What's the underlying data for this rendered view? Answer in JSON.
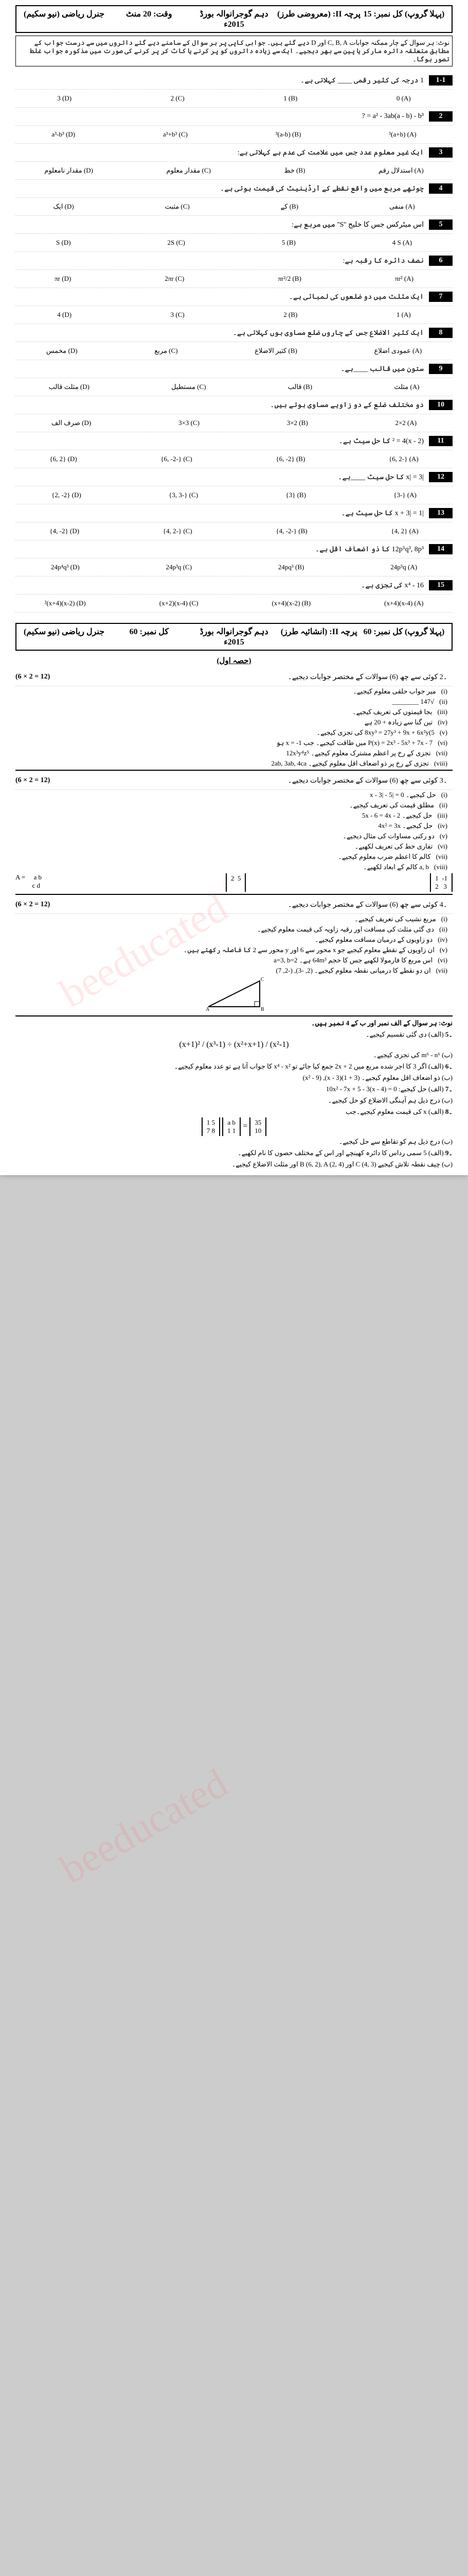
{
  "paper1": {
    "header": {
      "subject": "جنرل ریاضی (نیو سکیم)",
      "time": "وقت: 20 منٹ",
      "board": "دہم گوجرانوالہ بورڈ 2015ء",
      "paper": "پرچہ II: (معروضی طرز)",
      "group": "(پہلا گروپ) کل نمبر: 15"
    },
    "note": "نوٹ: ہر سوال کے چار ممکنہ جوابات C, B, A اور D دیے گئے ہیں۔ جوابی کاپی پر ہر سوال کے سامنے دیے گئے دائروں میں سے درست جواب کے مطابق متعلقہ دائرہ مارکر یا پین سے بھر دیجیے۔ ایک سے زیادہ دائروں کو پر کرنے یا کاٹ کر پر کرنے کی صورت میں مذکورہ جواب غلط تصور ہوگا۔",
    "q": [
      {
        "n": "1-1",
        "text": "1 درجہ کی کثیر رقمی ____ کہلاتی ہے۔",
        "a": "0",
        "b": "1",
        "c": "2",
        "d": "3"
      },
      {
        "n": "2",
        "text": "a² - 3ab(a - b) - b³ = ?",
        "a": "(a+b)³",
        "b": "(a-b)³",
        "c": "a³+b³",
        "d": "a³-b³"
      },
      {
        "n": "3",
        "text": "ایک غیر معلوم عدد جس میں علامت کی عدم ہے کہلاتی ہے:",
        "a": "استدلال رقم",
        "b": "خط",
        "c": "مقدار معلوم",
        "d": "مقدار نامعلوم"
      },
      {
        "n": "4",
        "text": "چوتھے مربع میں واقع نقطے کے آرڈینیٹ کی قیمت ہوتی ہے۔",
        "a": "منفی",
        "b": "کے",
        "c": "مثبت",
        "d": "ایک"
      },
      {
        "n": "5",
        "text": "اس میٹرکس جس کا خلیج ''S'' میں مربع ہے:",
        "a": "4 S",
        "b": "5",
        "c": "2S",
        "d": "S"
      },
      {
        "n": "6",
        "text": "نصف دائرہ کا رقبہ ہے:",
        "a": "πr²",
        "b": "πr²/2",
        "c": "2πr",
        "d": "πr"
      },
      {
        "n": "7",
        "text": "ایک مثلث میں دو ضلعوں کی لمبائی ہے۔",
        "a": "1",
        "b": "2",
        "c": "3",
        "d": "4"
      },
      {
        "n": "8",
        "text": "ایک کثیر الاضلاع جس کے چاروں ضلع مساوی ہوں کہلاتی ہے۔",
        "a": "عمودی اضلاع",
        "b": "کثیر الاضلاع",
        "c": "مربع",
        "d": "مخمس"
      },
      {
        "n": "9",
        "text": "ستون میں قالب ____ہے۔",
        "a": "مثلث",
        "b": "قالب",
        "c": "مستطیل",
        "d": "مثلث قالب"
      },
      {
        "n": "10",
        "text": "دو مختلف ضلع کے دو زاویے مساوی ہوتے ہیں۔",
        "a": "2×2",
        "b": "3×2",
        "c": "3×3",
        "d": "صرف الف"
      },
      {
        "n": "11",
        "text": "(x - 2)² = 4 کا حل سیٹ ہے۔",
        "a": "{-6, 2}",
        "b": "{6, -2}",
        "c": "{-6, -2}",
        "d": "{6, 2}"
      },
      {
        "n": "12",
        "text": "|x| = 3 کا حل سیٹ ____ہے۔",
        "a": "{-3}",
        "b": "{3}",
        "c": "{-3, 3}",
        "d": "{2, -2}"
      },
      {
        "n": "13",
        "text": "|x + 3| = 1 کا حل سیٹ ہے۔",
        "a": "{4, 2}",
        "b": "{-4, -2}",
        "c": "{-4, 2}",
        "d": "{4, -2}"
      },
      {
        "n": "14",
        "text": "12p⁵q³, 8p³ کا ذو اضعاف اقل ہے۔",
        "a": "24p⁵q",
        "b": "24pq³",
        "c": "24p³q",
        "d": "24p⁴q³"
      },
      {
        "n": "15",
        "text": "x⁴ - 16 کی تجزی ہے۔",
        "a": "(x-4)(x+4)",
        "b": "(x-2)(x+4)",
        "c": "(x-4)(x+2)",
        "d": "(x-2)²(x+4)"
      }
    ]
  },
  "paper2": {
    "header": {
      "subject": "جنرل ریاضی (نیو سکیم)",
      "marks": "کل نمبر: 60",
      "board": "دہم گوجرانوالہ بورڈ 2015ء",
      "paper": "پرچہ II: (انشائیہ طرز)",
      "group": "(پہلا گروپ) کل نمبر: 60"
    },
    "section1": "(حصہ اول)",
    "q2": {
      "head": "۔2 کوئی سے چھ (6) سوالات کے مختصر جوابات دیجیے۔",
      "marks": "(6 × 2 = 12)",
      "sub": [
        "میر جواب حلقی معلوم کیجیے۔",
        "√147 ________",
        "بجا قیمتوں کی تعریف کیجیے۔",
        "تین گنا سے زیادہ + 20 ہے",
        "8xy³ = 27y³ + 9x + 6x²y(5 کی تجزی کیجیے۔",
        "P(x) = 2x⁵ - 5x³ + 7x - 7 میں طاقت کیجیے۔ جب x = -1 ہو",
        "تجزی کے رخ پر اعظم مشترک معلوم کیجیے۔ 12x³y⁴z⁵",
        "تجزی کے رخ پر ذو اضعاف اقل معلوم کیجیے۔ 2ab, 3ab, 4ca"
      ]
    },
    "q3": {
      "head": "۔3 کوئی سے چھ (6) سوالات کے مختصر جوابات دیجیے۔",
      "marks": "(6 × 2 = 12)",
      "sub": [
        "حل کیجیے۔ 0 = |x - 3| - 5",
        "مطلق قیمت کی تعریف کیجیے۔",
        "حل کیجیے۔ 5x - 6 = 4x - 2",
        "حل کیجیے۔ 4x² = 3x",
        "دو رکنی مساوات کی مثال دیجیے۔",
        "تفاری خط کی تعریف لکھیے۔",
        "کالم کا اعظم ضرب معلوم کیجیے۔",
        "a, b کالم کے ابعاد لکھیے۔"
      ]
    },
    "q4": {
      "head": "۔4 کوئی سے چھ (6) سوالات کے مختصر جوابات دیجیے۔",
      "marks": "(6 × 2 = 12)",
      "sub": [
        "مربع نشیب کی تعریف کیجیے۔",
        "دی گئی مثلث کی مسافت اور رقبہ زاویہ کی قیمت معلوم کیجیے۔",
        "",
        "دو زاویوں کے درمیان مسافت معلوم کیجیے۔",
        "ان زاویوں کے نقطے معلوم کیجیے جو x محور سے 6 اور y محور سے 2 کا فاصلہ رکھتے ہیں۔",
        "اس مربع کا فارمولا لکھیے جس کا حجم 64m³ ہے۔ a=3, b=2",
        "ان دو نقطے کا درمیانی نقطہ معلوم کیجیے۔ (2, -3), (-2, 7)"
      ]
    },
    "section2_note": "نوٹ: ہر سوال کے الف نمبر اور ب کے 4 نمبر ہیں۔",
    "q5": {
      "a": "(الف) دی گئی تقسیم کیجیے۔",
      "a_expr": "(x+1)² / (x³-1) ÷ (x²+x+1) / (x²-1)",
      "b": "(ب) m⁶ - n⁶ کی تجزی کیجیے۔"
    },
    "q6": {
      "a": "(الف) اگر 3 کا اجر شده مربع میں 2x + 2 جمع کیا جائے تو x⁴ - x² کا جواب آتا ہے تو عدد معلوم کیجیے۔",
      "b": "(ب) ذو اضعاف اقل معلوم کیجیے۔ (3 + 1)(x - 3), (x² - 9)"
    },
    "q7": {
      "a": "(الف) حل کیجیے: 10x² - 7x + 5 - 3(x - 4) = 0",
      "b": "(ب) درج ذیل ہم آہنگی الاضلاع کو حل کیجیے۔"
    },
    "q8": {
      "a": "(الف) x کی قیمت معلوم کیجیے۔جب",
      "b": "(ب) درج ذیل ہم کو تقاطع سے حل کیجیے۔"
    },
    "q9": {
      "a": "(الف) 5 سمی رداس کا دائرہ کھینچے اور اس کے مختلف حصوں کا نام لکھیے۔",
      "b": "(ب) چیف نقطہ تلاش کیجیے C (4, 3) اور B (6, 2), A (2, 4) اور مثلث الاضلاع کیجیے۔"
    }
  }
}
